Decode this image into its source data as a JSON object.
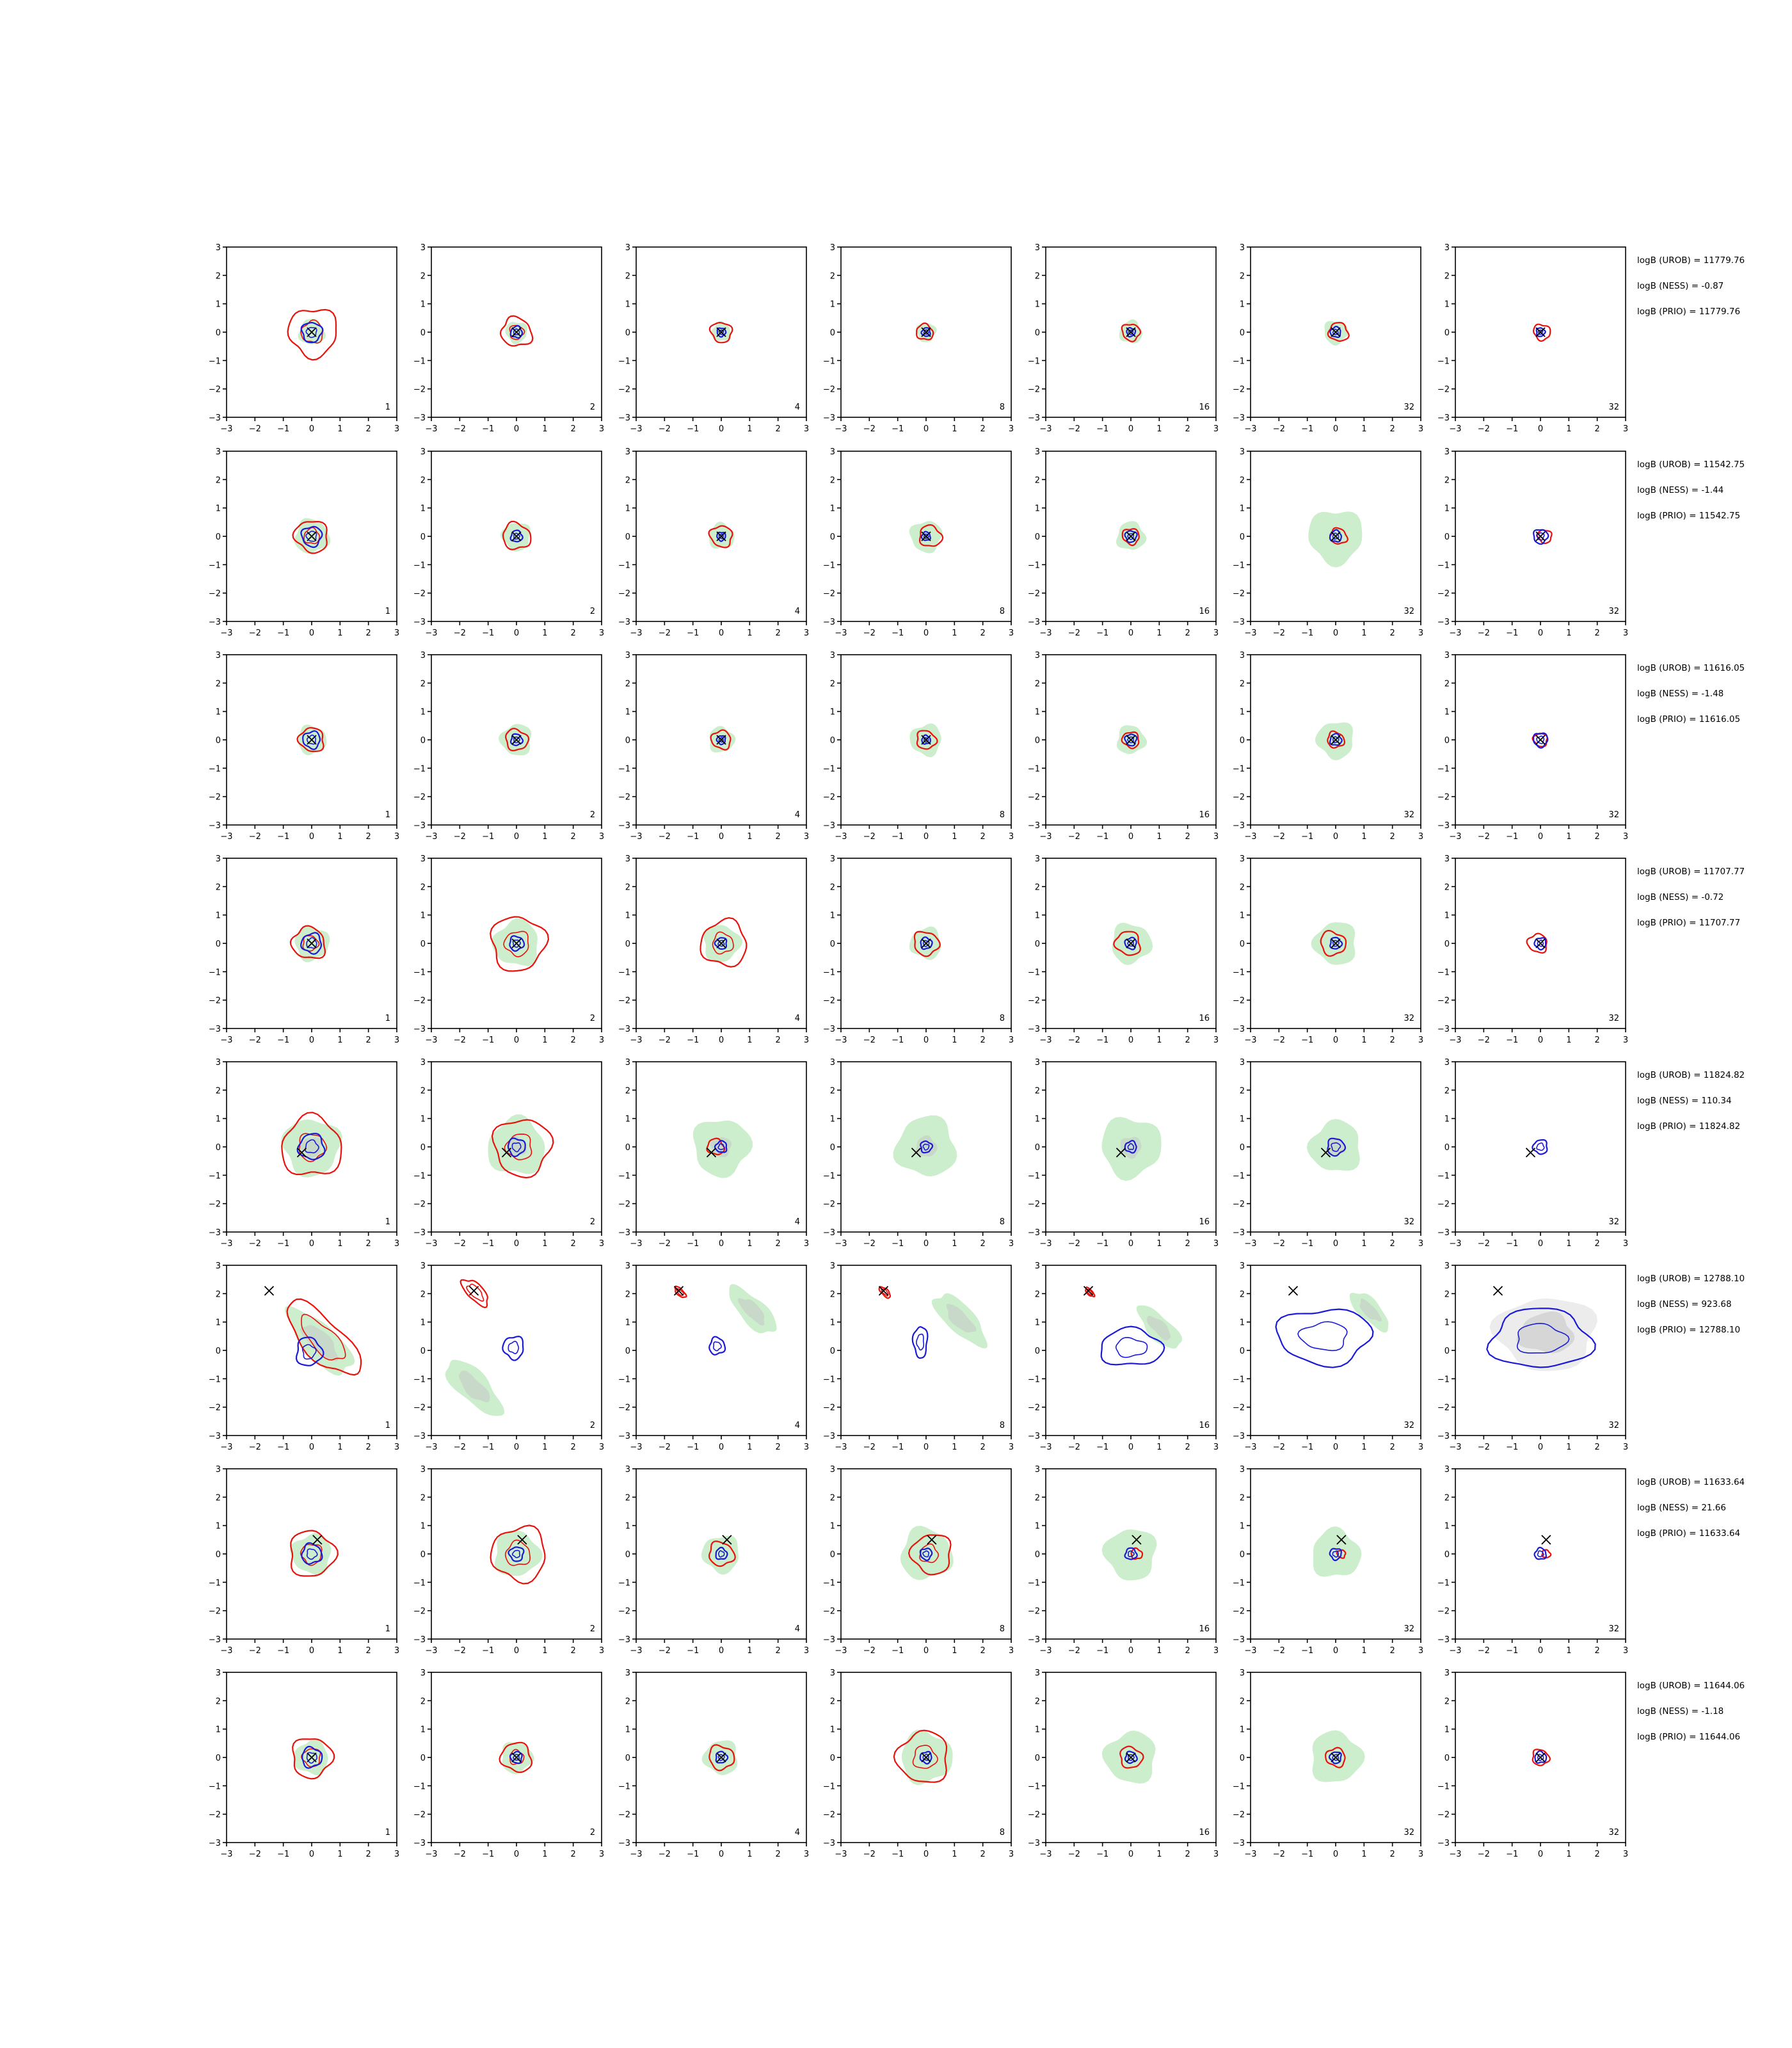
{
  "chart_data": {
    "type": "contour",
    "title": "",
    "xlabel": "",
    "ylabel": "",
    "xlim": [
      -3,
      3
    ],
    "ylim": [
      -3,
      3
    ],
    "xticks": [
      -3,
      -2,
      -1,
      0,
      1,
      2,
      3
    ],
    "yticks": [
      -3,
      -2,
      -1,
      0,
      1,
      2,
      3
    ],
    "tick_labels": [
      "−3",
      "−2",
      "−1",
      "0",
      "1",
      "2",
      "3"
    ],
    "grid": false,
    "panel_labels": [
      "1",
      "2",
      "4",
      "8",
      "16",
      "32",
      "32"
    ],
    "colors": {
      "fill_outer": "#cdeecd",
      "fill_inner": "#c9d9c9",
      "fill_grey_outer": "#ececec",
      "fill_grey_inner": "#d6d6d6",
      "red_contour": "#e8120c",
      "blue_contour": "#1a1ad6",
      "marker": "#000000"
    },
    "rows": [
      {
        "stats": [
          "logB (UROB) = 11779.76",
          "logB (NESS) = -0.87",
          "logB (PRIO) = 11779.76"
        ],
        "truth": [
          0,
          0
        ],
        "fill": [
          0.45,
          0.38,
          0.34,
          0.34,
          0.4,
          0.42,
          0
        ],
        "red": [
          0.85,
          0.55,
          0.38,
          0.3,
          0.32,
          0.35,
          0.3
        ],
        "blue": [
          0.35,
          0.2,
          0.15,
          0.15,
          0.15,
          0.18,
          0.15
        ],
        "red_dx": [
          0.05,
          0,
          0,
          -0.05,
          0,
          0.1,
          0.05
        ]
      },
      {
        "stats": [
          "logB (UROB) = 11542.75",
          "logB (NESS) = -1.44",
          "logB (PRIO) = 11542.75"
        ],
        "truth": [
          0,
          0
        ],
        "fill": [
          0.6,
          0.5,
          0.45,
          0.55,
          0.5,
          0.95,
          0
        ],
        "red": [
          0.6,
          0.5,
          0.4,
          0.4,
          0.3,
          0.3,
          0.25
        ],
        "blue": [
          0.35,
          0.2,
          0.15,
          0.15,
          0.2,
          0.2,
          0.25
        ],
        "red_dx": [
          0,
          0,
          0,
          0.15,
          0,
          0.1,
          0.15
        ]
      },
      {
        "stats": [
          "logB (UROB) = 11616.05",
          "logB (NESS) = -1.48",
          "logB (PRIO) = 11616.05"
        ],
        "truth": [
          0,
          0
        ],
        "fill": [
          0.5,
          0.55,
          0.45,
          0.55,
          0.5,
          0.65,
          0
        ],
        "red": [
          0.45,
          0.4,
          0.35,
          0.35,
          0.3,
          0.3,
          0.25
        ],
        "blue": [
          0.3,
          0.2,
          0.15,
          0.15,
          0.2,
          0.2,
          0.25
        ],
        "red_dx": [
          0,
          0,
          0,
          0,
          0,
          0,
          0
        ]
      },
      {
        "stats": [
          "logB (UROB) = 11707.77",
          "logB (NESS) = -0.72",
          "logB (PRIO) = 11707.77"
        ],
        "truth": [
          0,
          0
        ],
        "fill": [
          0.6,
          0.8,
          0.65,
          0.55,
          0.7,
          0.75,
          0
        ],
        "red": [
          0.6,
          0.95,
          0.8,
          0.45,
          0.45,
          0.45,
          0.35
        ],
        "blue": [
          0.35,
          0.25,
          0.2,
          0.2,
          0.2,
          0.2,
          0.2
        ],
        "red_dx": [
          -0.1,
          0.05,
          0.1,
          0,
          -0.1,
          -0.1,
          -0.1
        ]
      },
      {
        "stats": [
          "logB (UROB) = 11824.82",
          "logB (NESS) = 110.34",
          "logB (PRIO) = 11824.82"
        ],
        "truth": [
          -0.35,
          -0.2
        ],
        "fill": [
          1.0,
          1.0,
          1.0,
          1.05,
          1.05,
          0.9,
          0
        ],
        "red": [
          1.05,
          1.0,
          0.3,
          0,
          0,
          0,
          0
        ],
        "blue": [
          0.45,
          0.3,
          0.2,
          0.2,
          0.2,
          0.3,
          0.25
        ],
        "red_dx": [
          0,
          0.2,
          -0.2,
          0,
          0,
          0,
          0
        ]
      },
      {
        "stats": [
          "logB (UROB) = 12788.10",
          "logB (NESS) = 923.68",
          "logB (PRIO) = 12788.10"
        ],
        "truth": [
          -1.5,
          2.1
        ],
        "fill": [
          1.5,
          1.3,
          1.1,
          1.2,
          1.0,
          0.9,
          1.6
        ],
        "red": [
          1.7,
          0.6,
          0.25,
          0.25,
          0.2,
          0,
          0
        ],
        "blue": [
          0.5,
          0.4,
          0.3,
          0.55,
          1.0,
          1.5,
          1.6
        ],
        "red_dx": [
          0,
          0,
          0,
          0,
          0,
          0,
          0
        ]
      },
      {
        "stats": [
          "logB (UROB) = 11633.64",
          "logB (NESS) = 21.66",
          "logB (PRIO) = 11633.64"
        ],
        "truth": [
          0.2,
          0.5
        ],
        "fill": [
          0.7,
          0.8,
          0.65,
          0.9,
          0.9,
          0.85,
          0
        ],
        "red": [
          0.8,
          0.95,
          0.45,
          0.7,
          0.2,
          0.15,
          0.15
        ],
        "blue": [
          0.35,
          0.25,
          0.2,
          0.2,
          0.2,
          0.2,
          0.2
        ],
        "red_dx": [
          0,
          0.1,
          0,
          0.2,
          0.2,
          0.2,
          0.2
        ]
      },
      {
        "stats": [
          "logB (UROB) = 11644.06",
          "logB (NESS) = -1.18",
          "logB (PRIO) = 11644.06"
        ],
        "truth": [
          0,
          0
        ],
        "fill": [
          0.6,
          0.55,
          0.6,
          0.9,
          0.9,
          0.9,
          0
        ],
        "red": [
          0.7,
          0.55,
          0.45,
          0.9,
          0.4,
          0.35,
          0.3
        ],
        "blue": [
          0.35,
          0.2,
          0.2,
          0.2,
          0.2,
          0.2,
          0.2
        ],
        "red_dx": [
          0,
          0,
          0,
          -0.1,
          0,
          0,
          0
        ]
      }
    ]
  }
}
